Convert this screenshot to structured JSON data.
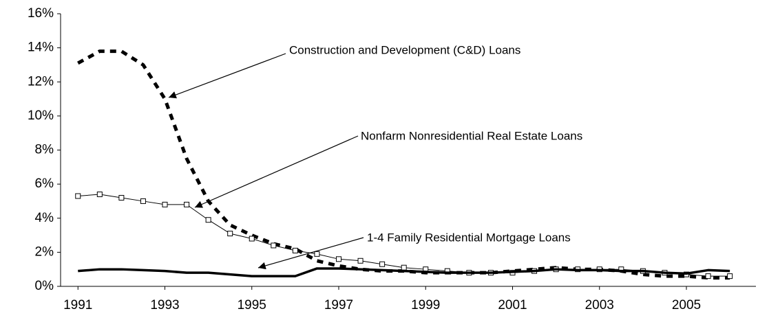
{
  "chart_data": {
    "type": "line",
    "x": [
      1991,
      1991.5,
      1992,
      1992.5,
      1993,
      1993.5,
      1994,
      1994.5,
      1995,
      1995.5,
      1996,
      1996.5,
      1997,
      1997.5,
      1998,
      1998.5,
      1999,
      1999.5,
      2000,
      2000.5,
      2001,
      2001.5,
      2002,
      2002.5,
      2003,
      2003.5,
      2004,
      2004.5,
      2005,
      2005.5,
      2006
    ],
    "series": [
      {
        "name": "Construction and Development (C&D) Loans",
        "color": "#000000",
        "values": [
          13.1,
          13.8,
          13.8,
          13.0,
          11.0,
          7.5,
          5.0,
          3.6,
          3.0,
          2.5,
          2.2,
          1.5,
          1.2,
          1.0,
          0.9,
          0.9,
          0.8,
          0.8,
          0.8,
          0.8,
          0.9,
          1.0,
          1.1,
          1.0,
          1.0,
          0.9,
          0.7,
          0.6,
          0.6,
          0.5,
          0.5
        ]
      },
      {
        "name": "Nonfarm Nonresidential Real Estate Loans",
        "color": "#000000",
        "values": [
          5.3,
          5.4,
          5.2,
          5.0,
          4.8,
          4.8,
          3.9,
          3.1,
          2.8,
          2.4,
          2.1,
          1.9,
          1.6,
          1.5,
          1.3,
          1.1,
          1.0,
          0.9,
          0.8,
          0.8,
          0.8,
          0.9,
          1.0,
          1.0,
          1.0,
          1.0,
          0.9,
          0.8,
          0.7,
          0.6,
          0.6
        ]
      },
      {
        "name": "1-4 Family Residential Mortgage Loans",
        "color": "#000000",
        "values": [
          0.9,
          1.0,
          1.0,
          0.95,
          0.9,
          0.8,
          0.8,
          0.7,
          0.6,
          0.6,
          0.6,
          1.05,
          1.05,
          1.0,
          0.95,
          0.9,
          0.85,
          0.8,
          0.8,
          0.8,
          0.85,
          0.9,
          1.0,
          0.95,
          0.95,
          0.9,
          0.9,
          0.8,
          0.75,
          0.95,
          0.9
        ]
      }
    ],
    "xlim": [
      1990.6,
      2006.6
    ],
    "xticks": [
      1991,
      1993,
      1995,
      1997,
      1999,
      2001,
      2003,
      2005
    ],
    "ylim": [
      0,
      16
    ],
    "yticks": [
      {
        "value": 0,
        "label": "0%"
      },
      {
        "value": 2,
        "label": "2%"
      },
      {
        "value": 4,
        "label": "4%"
      },
      {
        "value": 6,
        "label": "6%"
      },
      {
        "value": 8,
        "label": "8%"
      },
      {
        "value": 10,
        "label": "10%"
      },
      {
        "value": 12,
        "label": "12%"
      },
      {
        "value": 14,
        "label": "14%"
      },
      {
        "value": 16,
        "label": "16%"
      }
    ]
  }
}
